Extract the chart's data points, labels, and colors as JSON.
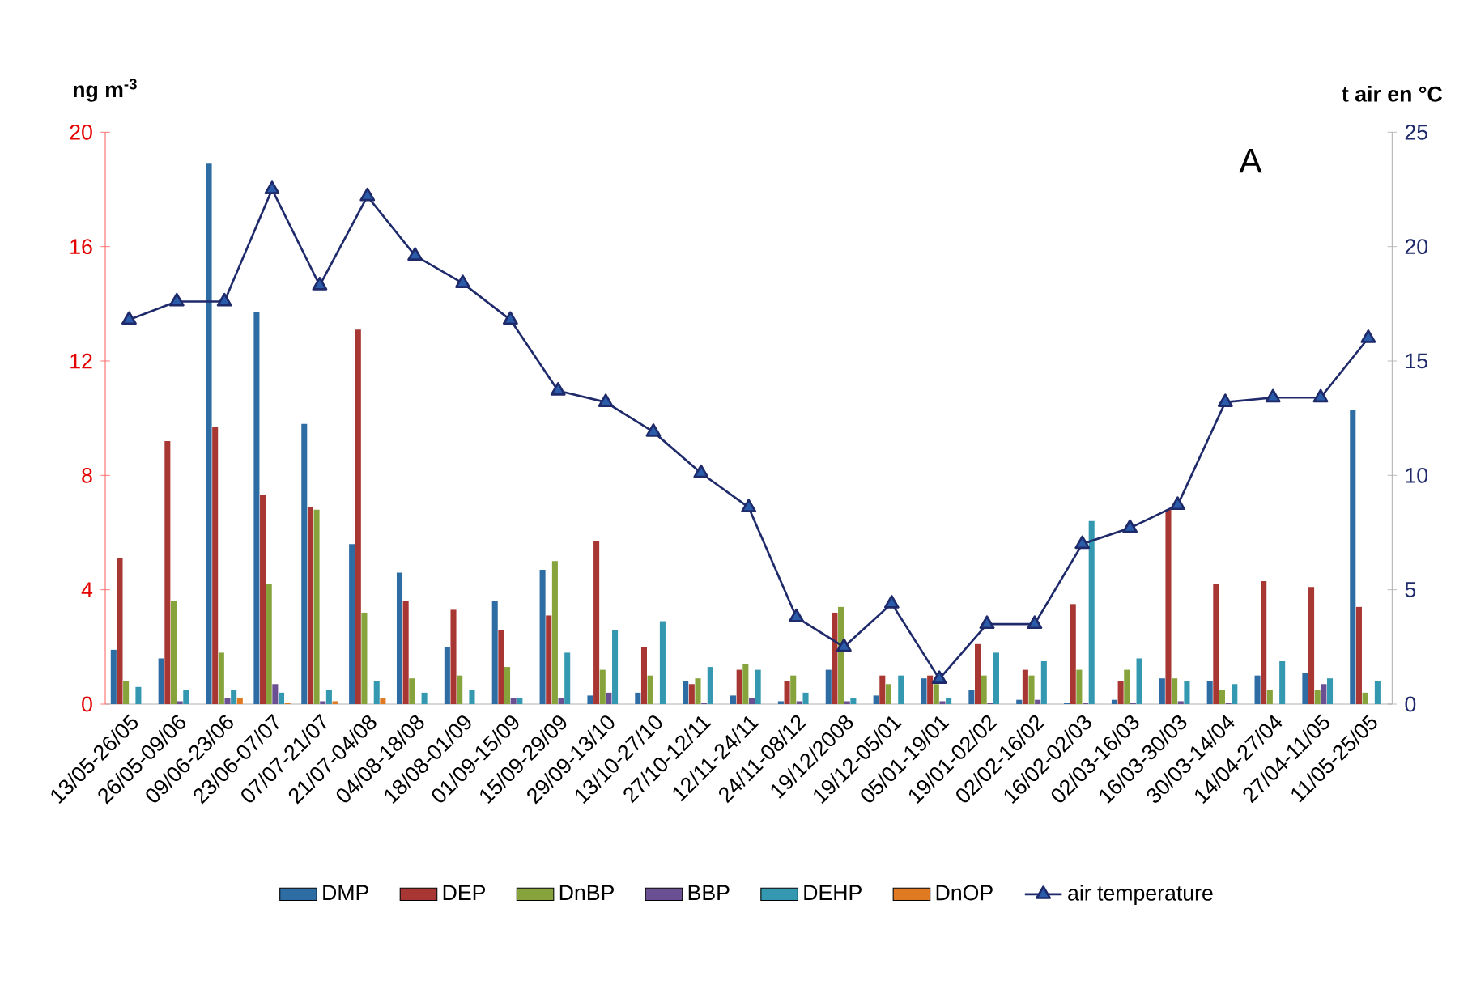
{
  "chart_data": {
    "type": "bar",
    "categories": [
      "13/05-26/05",
      "26/05-09/06",
      "09/06-23/06",
      "23/06-07/07",
      "07/07-21/07",
      "21/07-04/08",
      "04/08-18/08",
      "18/08-01/09",
      "01/09-15/09",
      "15/09-29/09",
      "29/09-13/10",
      "13/10-27/10",
      "27/10-12/11",
      "12/11-24/11",
      "24/11-08/12",
      "19/12/2008",
      "19/12-05/01",
      "05/01-19/01",
      "19/01-02/02",
      "02/02-16/02",
      "16/02-02/03",
      "02/03-16/03",
      "16/03-30/03",
      "30/03-14/04",
      "14/04-27/04",
      "27/04-11/05",
      "11/05-25/05"
    ],
    "series": [
      {
        "name": "DMP",
        "color": "#2e6ca4",
        "values": [
          1.9,
          1.6,
          18.9,
          13.7,
          9.8,
          5.6,
          4.6,
          2.0,
          3.6,
          4.7,
          0.3,
          0.4,
          0.8,
          0.3,
          0.1,
          1.2,
          0.3,
          0.9,
          0.5,
          0.15,
          0.05,
          0.15,
          0.9,
          0.8,
          1.0,
          1.1,
          10.3
        ]
      },
      {
        "name": "DEP",
        "color": "#a83632",
        "values": [
          5.1,
          9.2,
          9.7,
          7.3,
          6.9,
          13.1,
          3.6,
          3.3,
          2.6,
          3.1,
          5.7,
          2.0,
          0.7,
          1.2,
          0.8,
          3.2,
          1.0,
          1.0,
          2.1,
          1.2,
          3.5,
          0.8,
          6.8,
          4.2,
          4.3,
          4.1,
          3.4
        ]
      },
      {
        "name": "DnBP",
        "color": "#86a33c",
        "values": [
          0.8,
          3.6,
          1.8,
          4.2,
          6.8,
          3.2,
          0.9,
          1.0,
          1.3,
          5.0,
          1.2,
          1.0,
          0.9,
          1.4,
          1.0,
          3.4,
          0.7,
          0.7,
          1.0,
          1.0,
          1.2,
          1.2,
          0.9,
          0.5,
          0.5,
          0.5,
          0.4
        ]
      },
      {
        "name": "BBP",
        "color": "#6a4f92",
        "values": [
          0,
          0.1,
          0.2,
          0.7,
          0.1,
          0,
          0,
          0,
          0.2,
          0.2,
          0.4,
          0,
          0.05,
          0.2,
          0.1,
          0.1,
          0,
          0.1,
          0.05,
          0.15,
          0.05,
          0.05,
          0.1,
          0.05,
          0,
          0.7,
          0
        ]
      },
      {
        "name": "DEHP",
        "color": "#3398b0",
        "values": [
          0.6,
          0.5,
          0.5,
          0.4,
          0.5,
          0.8,
          0.4,
          0.5,
          0.2,
          1.8,
          2.6,
          2.9,
          1.3,
          1.2,
          0.4,
          0.2,
          1.0,
          0.2,
          1.8,
          1.5,
          6.4,
          1.6,
          0.8,
          0.7,
          1.5,
          0.9,
          0.8
        ]
      },
      {
        "name": "DnOP",
        "color": "#e07a22",
        "values": [
          0,
          0,
          0.2,
          0.05,
          0.1,
          0.2,
          0,
          0,
          0,
          0,
          0,
          0,
          0,
          0,
          0,
          0,
          0,
          0,
          0,
          0,
          0,
          0,
          0,
          0,
          0,
          0,
          0
        ]
      },
      {
        "name": "air temperature",
        "type": "line",
        "axis": "y2",
        "color": "#1f2a6b",
        "values": [
          16.8,
          17.6,
          17.6,
          22.5,
          18.3,
          22.2,
          19.6,
          18.4,
          16.8,
          13.7,
          13.2,
          11.9,
          10.1,
          8.6,
          3.8,
          2.5,
          4.4,
          1.1,
          3.5,
          3.5,
          7.0,
          7.7,
          8.7,
          13.2,
          13.4,
          13.4,
          16.0
        ]
      }
    ],
    "ylabel": "ng m$^{-3}$",
    "y2label": "t air en °C",
    "ylim": [
      0,
      20
    ],
    "yticks": [
      0,
      4,
      8,
      12,
      16,
      20
    ],
    "y2lim": [
      0,
      25
    ],
    "y2ticks": [
      0,
      5,
      10,
      15,
      20,
      25
    ],
    "annotations": [
      "A"
    ],
    "legend": "bottom",
    "marker": "triangle",
    "line_style": "solid"
  }
}
